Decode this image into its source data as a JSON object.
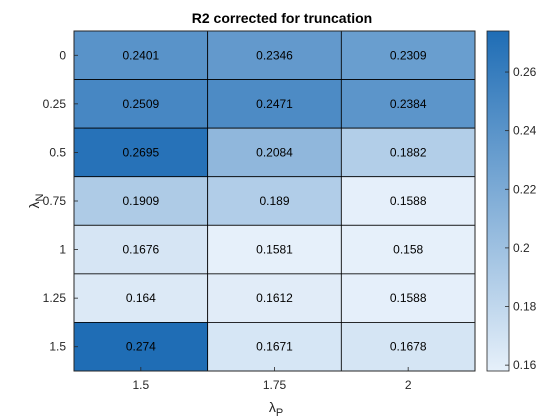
{
  "chart_data": {
    "type": "heatmap",
    "title": "R2 corrected for truncation",
    "xlabel": {
      "symbol": "λ",
      "subscript": "P"
    },
    "ylabel": {
      "symbol": "λ",
      "subscript": "N"
    },
    "x_categories": [
      "1.5",
      "1.75",
      "2"
    ],
    "y_categories": [
      "0",
      "0.25",
      "0.5",
      "0.75",
      "1",
      "1.25",
      "1.5"
    ],
    "values": [
      [
        0.2401,
        0.2346,
        0.2309
      ],
      [
        0.2509,
        0.2471,
        0.2384
      ],
      [
        0.2695,
        0.2084,
        0.1882
      ],
      [
        0.1909,
        0.189,
        0.1588
      ],
      [
        0.1676,
        0.1581,
        0.158
      ],
      [
        0.164,
        0.1612,
        0.1588
      ],
      [
        0.274,
        0.1671,
        0.1678
      ]
    ],
    "value_labels": [
      [
        "0.2401",
        "0.2346",
        "0.2309"
      ],
      [
        "0.2509",
        "0.2471",
        "0.2384"
      ],
      [
        "0.2695",
        "0.2084",
        "0.1882"
      ],
      [
        "0.1909",
        "0.189",
        "0.1588"
      ],
      [
        "0.1676",
        "0.1581",
        "0.158"
      ],
      [
        "0.164",
        "0.1612",
        "0.1588"
      ],
      [
        "0.274",
        "0.1671",
        "0.1678"
      ]
    ],
    "colorbar": {
      "range": [
        0.158,
        0.274
      ],
      "ticks": [
        "0.16",
        "0.18",
        "0.2",
        "0.22",
        "0.24",
        "0.26"
      ],
      "tick_values": [
        0.16,
        0.18,
        0.2,
        0.22,
        0.24,
        0.26
      ],
      "colormap": {
        "low": "#e6f0fa",
        "high": "#1f6db5"
      }
    },
    "grid": true
  }
}
